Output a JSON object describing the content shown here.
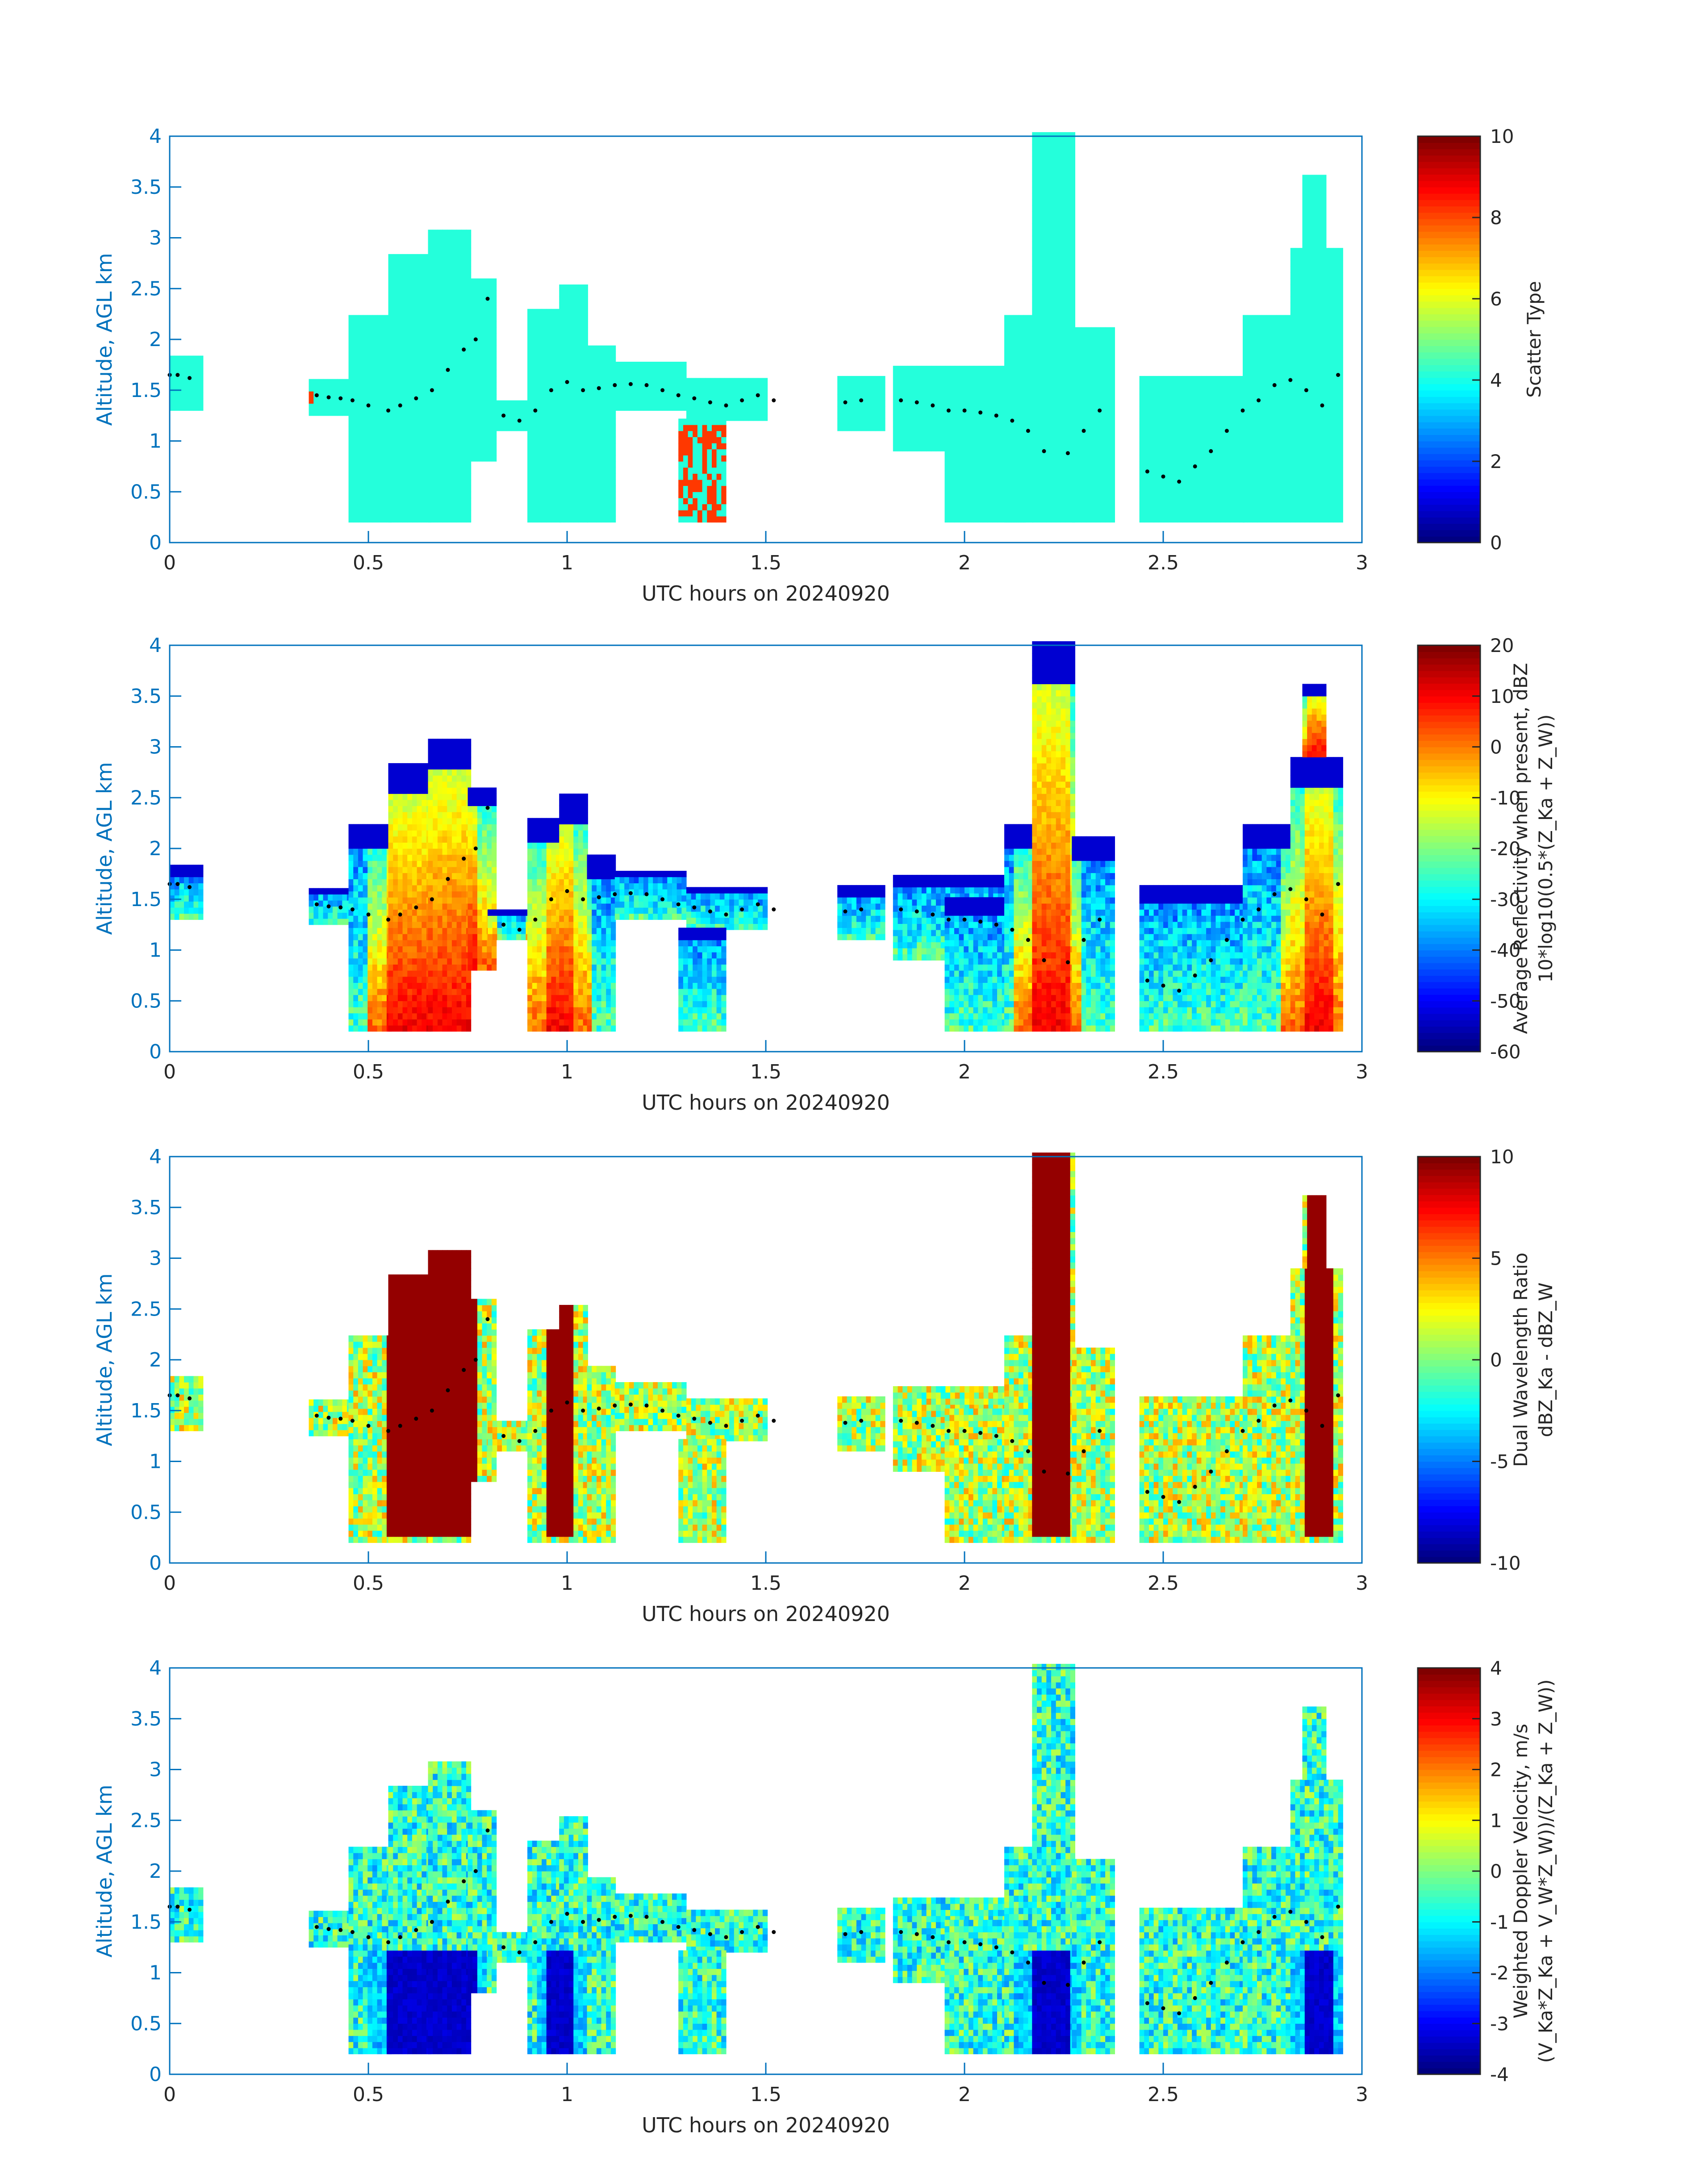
{
  "colors": {
    "axis_blue": "#0072BD",
    "text": "#262626",
    "colormap": "jet",
    "point_marker": "#000000"
  },
  "chart_data": [
    {
      "type": "heatmap",
      "panel": 1,
      "xlabel": "UTC hours on 20240920",
      "ylabel": "Altitude, AGL km",
      "xlim": [
        0,
        3
      ],
      "ylim": [
        0,
        4
      ],
      "xticks": [
        "0",
        "0.5",
        "1",
        "1.5",
        "2",
        "2.5",
        "3"
      ],
      "yticks": [
        "0",
        "0.5",
        "1",
        "1.5",
        "2",
        "2.5",
        "3",
        "3.5",
        "4"
      ],
      "colorbar": {
        "label_lines": [
          "Scatter Type"
        ],
        "range": [
          0,
          10
        ],
        "ticks": [
          "0",
          "2",
          "4",
          "6",
          "8",
          "10"
        ]
      },
      "field": "scatter_type"
    },
    {
      "type": "heatmap",
      "panel": 2,
      "xlabel": "UTC hours on 20240920",
      "ylabel": "Altitude, AGL km",
      "xlim": [
        0,
        3
      ],
      "ylim": [
        0,
        4
      ],
      "xticks": [
        "0",
        "0.5",
        "1",
        "1.5",
        "2",
        "2.5",
        "3"
      ],
      "yticks": [
        "0",
        "0.5",
        "1",
        "1.5",
        "2",
        "2.5",
        "3",
        "3.5",
        "4"
      ],
      "colorbar": {
        "label_lines": [
          "Average Reflectivity when present, dBZ",
          "10*log10(0.5*(Z_Ka + Z_W))"
        ],
        "range": [
          -60,
          20
        ],
        "ticks": [
          "-60",
          "-50",
          "-40",
          "-30",
          "-20",
          "-10",
          "0",
          "10",
          "20"
        ]
      },
      "field": "reflectivity"
    },
    {
      "type": "heatmap",
      "panel": 3,
      "xlabel": "UTC hours on 20240920",
      "ylabel": "Altitude, AGL km",
      "xlim": [
        0,
        3
      ],
      "ylim": [
        0,
        4
      ],
      "xticks": [
        "0",
        "0.5",
        "1",
        "1.5",
        "2",
        "2.5",
        "3"
      ],
      "yticks": [
        "0",
        "0.5",
        "1",
        "1.5",
        "2",
        "2.5",
        "3",
        "3.5",
        "4"
      ],
      "colorbar": {
        "label_lines": [
          "Dual Wavelength Ratio",
          "dBZ_Ka - dBZ_W"
        ],
        "range": [
          -10,
          10
        ],
        "ticks": [
          "-10",
          "-5",
          "0",
          "5",
          "10"
        ]
      },
      "field": "dwr"
    },
    {
      "type": "heatmap",
      "panel": 4,
      "xlabel": "UTC hours on 20240920",
      "ylabel": "Altitude, AGL km",
      "xlim": [
        0,
        3
      ],
      "ylim": [
        0,
        4
      ],
      "xticks": [
        "0",
        "0.5",
        "1",
        "1.5",
        "2",
        "2.5",
        "3"
      ],
      "yticks": [
        "0",
        "0.5",
        "1",
        "1.5",
        "2",
        "2.5",
        "3",
        "3.5",
        "4"
      ],
      "colorbar": {
        "label_lines": [
          "Weighted Doppler Velocity, m/s",
          "(V_Ka*Z_Ka + V_W*Z_W))/(Z_Ka + Z_W))"
        ],
        "range": [
          -4,
          4
        ],
        "ticks": [
          "-4",
          "-3",
          "-2",
          "-1",
          "0",
          "1",
          "2",
          "3",
          "4"
        ]
      },
      "field": "doppler"
    }
  ],
  "echo_segments": [
    {
      "t0": 0.0,
      "t1": 0.08,
      "hb": 1.3,
      "ht": 1.8
    },
    {
      "t0": 0.35,
      "t1": 0.5,
      "hb": 1.25,
      "ht": 1.6
    },
    {
      "t0": 0.45,
      "t1": 0.55,
      "hb": 0.2,
      "ht": 2.2
    },
    {
      "t0": 0.55,
      "t1": 0.65,
      "hb": 0.2,
      "ht": 2.8
    },
    {
      "t0": 0.65,
      "t1": 0.75,
      "hb": 0.2,
      "ht": 3.05
    },
    {
      "t0": 0.75,
      "t1": 0.82,
      "hb": 0.8,
      "ht": 2.6
    },
    {
      "t0": 0.8,
      "t1": 0.9,
      "hb": 1.1,
      "ht": 1.4
    },
    {
      "t0": 0.9,
      "t1": 0.98,
      "hb": 0.2,
      "ht": 2.3
    },
    {
      "t0": 0.98,
      "t1": 1.05,
      "hb": 0.2,
      "ht": 2.5
    },
    {
      "t0": 1.05,
      "t1": 1.12,
      "hb": 0.2,
      "ht": 1.9
    },
    {
      "t0": 1.12,
      "t1": 1.3,
      "hb": 1.3,
      "ht": 1.75
    },
    {
      "t0": 1.3,
      "t1": 1.5,
      "hb": 1.2,
      "ht": 1.6
    },
    {
      "t0": 1.28,
      "t1": 1.4,
      "hb": 0.2,
      "ht": 1.2
    },
    {
      "t0": 1.68,
      "t1": 1.8,
      "hb": 1.1,
      "ht": 1.6
    },
    {
      "t0": 1.82,
      "t1": 2.1,
      "hb": 0.9,
      "ht": 1.7
    },
    {
      "t0": 1.95,
      "t1": 2.15,
      "hb": 0.2,
      "ht": 1.5
    },
    {
      "t0": 2.1,
      "t1": 2.17,
      "hb": 0.2,
      "ht": 2.2
    },
    {
      "t0": 2.17,
      "t1": 2.27,
      "hb": 0.2,
      "ht": 4.0
    },
    {
      "t0": 2.27,
      "t1": 2.37,
      "hb": 0.2,
      "ht": 2.1
    },
    {
      "t0": 2.44,
      "t1": 2.7,
      "hb": 0.2,
      "ht": 1.6
    },
    {
      "t0": 2.7,
      "t1": 2.82,
      "hb": 0.2,
      "ht": 2.2
    },
    {
      "t0": 2.82,
      "t1": 2.95,
      "hb": 0.2,
      "ht": 2.9
    },
    {
      "t0": 2.85,
      "t1": 2.9,
      "hb": 2.9,
      "ht": 3.6
    }
  ],
  "cloud_base_points": {
    "t": [
      0.0,
      0.02,
      0.05,
      0.37,
      0.4,
      0.43,
      0.46,
      0.5,
      0.55,
      0.58,
      0.62,
      0.66,
      0.7,
      0.74,
      0.77,
      0.8,
      0.84,
      0.88,
      0.92,
      0.96,
      1.0,
      1.04,
      1.08,
      1.12,
      1.16,
      1.2,
      1.24,
      1.28,
      1.32,
      1.36,
      1.4,
      1.44,
      1.48,
      1.52,
      1.7,
      1.74,
      1.84,
      1.88,
      1.92,
      1.96,
      2.0,
      2.04,
      2.08,
      2.12,
      2.16,
      2.2,
      2.26,
      2.3,
      2.34,
      2.46,
      2.5,
      2.54,
      2.58,
      2.62,
      2.66,
      2.7,
      2.74,
      2.78,
      2.82,
      2.86,
      2.9,
      2.94
    ],
    "h": [
      1.65,
      1.65,
      1.62,
      1.45,
      1.43,
      1.42,
      1.4,
      1.35,
      1.3,
      1.35,
      1.42,
      1.5,
      1.7,
      1.9,
      2.0,
      2.4,
      1.25,
      1.2,
      1.3,
      1.5,
      1.58,
      1.5,
      1.52,
      1.55,
      1.56,
      1.55,
      1.5,
      1.45,
      1.42,
      1.38,
      1.35,
      1.4,
      1.45,
      1.4,
      1.38,
      1.4,
      1.4,
      1.38,
      1.35,
      1.3,
      1.3,
      1.28,
      1.25,
      1.2,
      1.1,
      0.9,
      0.88,
      1.1,
      1.3,
      0.7,
      0.65,
      0.6,
      0.75,
      0.9,
      1.1,
      1.3,
      1.4,
      1.55,
      1.6,
      1.5,
      1.35,
      1.65
    ]
  }
}
